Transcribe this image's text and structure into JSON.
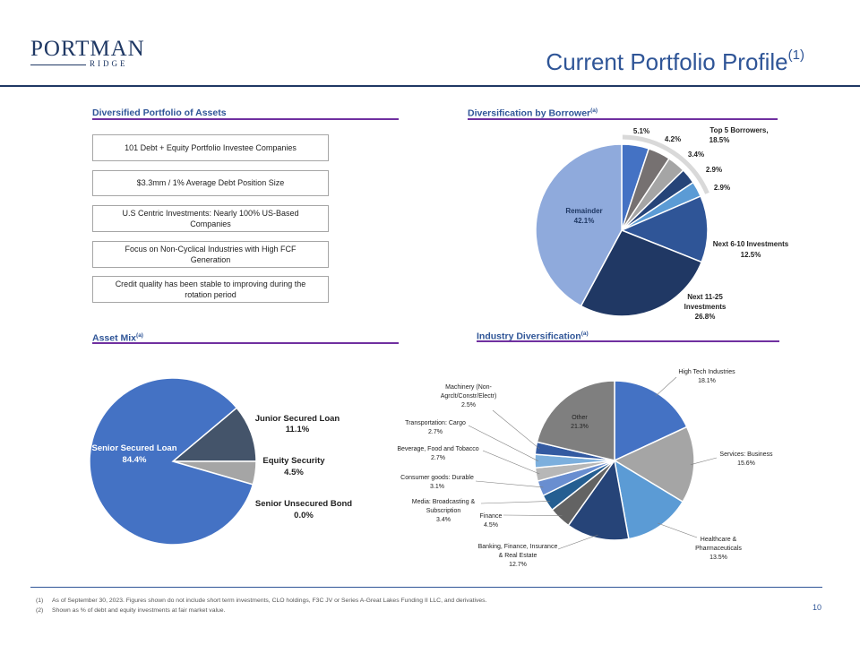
{
  "logo": {
    "name": "PORTMAN",
    "sub": "RIDGE"
  },
  "header": {
    "title": "Current Portfolio Profile",
    "title_note": "(1)"
  },
  "sections": {
    "assets": {
      "title": "Diversified Portfolio of Assets"
    },
    "borrower": {
      "title": "Diversification by Borrower",
      "note": "(a)"
    },
    "asset_mix": {
      "title": "Asset Mix",
      "note": "(a)"
    },
    "industry": {
      "title": "Industry Diversification",
      "note": "(a)"
    }
  },
  "highlights": [
    "101 Debt + Equity Portfolio Investee Companies",
    "$3.3mm / 1% Average Debt Position Size",
    "U.S Centric Investments: Nearly 100% US-Based Companies",
    "Focus on Non-Cyclical Industries with High FCF Generation",
    "Credit quality has been stable to improving during the rotation period"
  ],
  "chart_data": [
    {
      "type": "pie",
      "title": "Diversification by Borrower",
      "slices": [
        {
          "label": "",
          "value": 5.1,
          "value_label": "5.1%",
          "color": "#4472c4"
        },
        {
          "label": "",
          "value": 4.2,
          "value_label": "4.2%",
          "color": "#767171"
        },
        {
          "label": "",
          "value": 3.4,
          "value_label": "3.4%",
          "color": "#a5a5a5"
        },
        {
          "label": "",
          "value": 2.9,
          "value_label": "2.9%",
          "color": "#264478"
        },
        {
          "label": "",
          "value": 2.9,
          "value_label": "2.9%",
          "color": "#5b9bd5"
        },
        {
          "label": "Next 6-10 Investments",
          "value": 12.5,
          "value_label": "12.5%",
          "color": "#2f5597"
        },
        {
          "label": "Next 11-25 Investments",
          "value": 26.8,
          "value_label": "26.8%",
          "color": "#203864"
        },
        {
          "label": "Remainder",
          "value": 42.1,
          "value_label": "42.1%",
          "color": "#8faadc"
        }
      ],
      "group_label": "Top 5 Borrowers,",
      "group_value": "18.5%"
    },
    {
      "type": "pie",
      "title": "Asset Mix",
      "slices": [
        {
          "label": "Junior Secured Loan",
          "value": 11.1,
          "value_label": "11.1%",
          "color": "#44546a"
        },
        {
          "label": "Equity Security",
          "value": 4.5,
          "value_label": "4.5%",
          "color": "#a5a5a5"
        },
        {
          "label": "Senior Unsecured Bond",
          "value": 0.0,
          "value_label": "0.0%",
          "color": "#1f3864"
        },
        {
          "label": "Senior Secured Loan",
          "value": 84.4,
          "value_label": "84.4%",
          "color": "#4472c4"
        }
      ]
    },
    {
      "type": "pie",
      "title": "Industry Diversification",
      "slices": [
        {
          "label": "High Tech Industries",
          "value": 18.1,
          "value_label": "18.1%",
          "color": "#4472c4"
        },
        {
          "label": "Services: Business",
          "value": 15.6,
          "value_label": "15.6%",
          "color": "#a5a5a5"
        },
        {
          "label": "Healthcare & Pharmaceuticals",
          "value": 13.5,
          "value_label": "13.5%",
          "color": "#5b9bd5"
        },
        {
          "label": "Banking, Finance, Insurance & Real Estate",
          "value": 12.7,
          "value_label": "12.7%",
          "color": "#264478"
        },
        {
          "label": "Finance",
          "value": 4.5,
          "value_label": "4.5%",
          "color": "#636363"
        },
        {
          "label": "Media: Broadcasting & Subscription",
          "value": 3.4,
          "value_label": "3.4%",
          "color": "#255e91"
        },
        {
          "label": "Consumer goods: Durable",
          "value": 3.1,
          "value_label": "3.1%",
          "color": "#698ed0"
        },
        {
          "label": "Beverage, Food and Tobacco",
          "value": 2.7,
          "value_label": "2.7%",
          "color": "#b7b7b7"
        },
        {
          "label": "Transportation: Cargo",
          "value": 2.7,
          "value_label": "2.7%",
          "color": "#7cafdd"
        },
        {
          "label": "Machinery (Non-Agrclt/Constr/Electr)",
          "value": 2.5,
          "value_label": "2.5%",
          "color": "#335aa1"
        },
        {
          "label": "Other",
          "value": 21.3,
          "value_label": "21.3%",
          "color": "#7f7f7f"
        }
      ]
    }
  ],
  "footnotes": [
    {
      "num": "(1)",
      "text": "As of September 30, 2023. Figures shown do not include short term investments, CLO holdings, F3C JV or Series A-Great Lakes Funding II LLC, and derivatives."
    },
    {
      "num": "(2)",
      "text": "Shown as % of debt and equity investments at fair market value."
    }
  ],
  "page_number": "10"
}
